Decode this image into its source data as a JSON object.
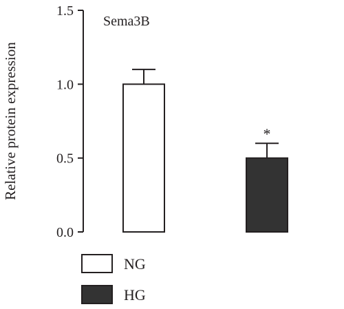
{
  "chart_data": {
    "type": "bar",
    "title": "Sema3B",
    "ylabel": "Relative protein expression",
    "xlabel": "",
    "ylim": [
      0,
      1.5
    ],
    "yticks": [
      0.0,
      0.5,
      1.0,
      1.5
    ],
    "ytick_labels": [
      "0.0",
      "0.5",
      "1.0",
      "1.5"
    ],
    "categories": [
      "NG",
      "HG"
    ],
    "values": [
      1.0,
      0.5
    ],
    "errors": [
      0.1,
      0.1
    ],
    "annotations": [
      "",
      "*"
    ],
    "colors": [
      "#ffffff",
      "#333333"
    ],
    "legend": {
      "placement": "bottom-left",
      "entries": [
        {
          "label": "NG",
          "color": "#ffffff"
        },
        {
          "label": "HG",
          "color": "#333333"
        }
      ]
    },
    "grid": false
  }
}
